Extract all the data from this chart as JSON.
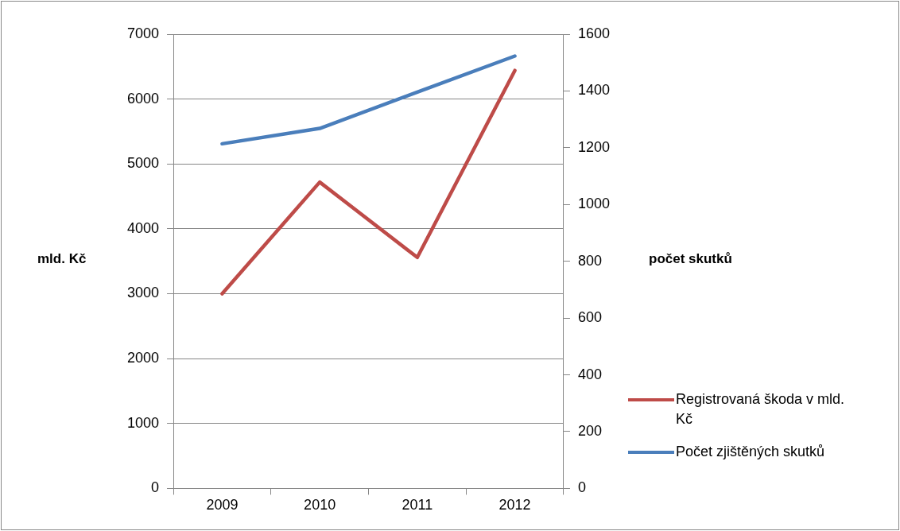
{
  "chart_data": {
    "type": "line",
    "categories": [
      "2009",
      "2010",
      "2011",
      "2012"
    ],
    "ylabel": "mld. Kč",
    "y2label": "počet skutků",
    "ylim": [
      0,
      7000
    ],
    "yticks": [
      0,
      1000,
      2000,
      3000,
      4000,
      5000,
      6000,
      7000
    ],
    "y2lim": [
      0,
      1600
    ],
    "y2ticks": [
      0,
      200,
      400,
      600,
      800,
      1000,
      1200,
      1400,
      1600
    ],
    "series": [
      {
        "name": "Registrovaná škoda v mld. Kč",
        "color": "#be4b48",
        "values": [
          3000,
          4720,
          3560,
          6440
        ]
      },
      {
        "name": "Počet zjištěných skutků",
        "color": "#4a7ebb",
        "axis": "y2",
        "values": [
          1214,
          1268,
          1396,
          1523
        ]
      }
    ],
    "grid": "y",
    "legend": "right",
    "marker": "none",
    "line_style": "solid"
  }
}
